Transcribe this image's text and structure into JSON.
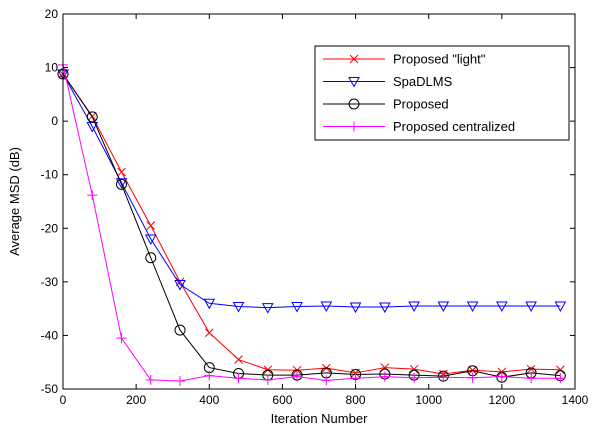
{
  "chart_data": {
    "type": "line",
    "title": "",
    "xlabel": "Iteration Number",
    "ylabel": "Average MSD (dB)",
    "xlim": [
      0,
      1400
    ],
    "ylim": [
      -50,
      20
    ],
    "xticks": [
      0,
      200,
      400,
      600,
      800,
      1000,
      1200,
      1400
    ],
    "yticks": [
      -50,
      -40,
      -30,
      -20,
      -10,
      0,
      10,
      20
    ],
    "legend_position": "top-right",
    "grid": false,
    "series": [
      {
        "name": "Proposed \"light\"",
        "color": "#ff0000",
        "marker": "x",
        "x": [
          0,
          80,
          160,
          240,
          320,
          400,
          480,
          560,
          640,
          720,
          800,
          880,
          960,
          1040,
          1120,
          1200,
          1280,
          1360
        ],
        "y": [
          8.8,
          0.9,
          -9.5,
          -19.5,
          -30,
          -39.5,
          -44.5,
          -46.4,
          -46.5,
          -46.1,
          -47,
          -46,
          -46.3,
          -47.2,
          -46.5,
          -46.8,
          -46.3,
          -46.4
        ]
      },
      {
        "name": "SpaDLMS",
        "color": "#0000ff",
        "marker": "triangle-down",
        "x": [
          0,
          80,
          160,
          240,
          320,
          400,
          480,
          560,
          640,
          720,
          800,
          880,
          960,
          1040,
          1120,
          1200,
          1280,
          1360
        ],
        "y": [
          8.8,
          -1,
          -11.5,
          -22,
          -30.5,
          -34,
          -34.6,
          -34.8,
          -34.6,
          -34.5,
          -34.7,
          -34.7,
          -34.5,
          -34.5,
          -34.5,
          -34.5,
          -34.5,
          -34.5
        ]
      },
      {
        "name": "Proposed",
        "color": "#000000",
        "marker": "circle",
        "x": [
          0,
          80,
          160,
          240,
          320,
          400,
          480,
          560,
          640,
          720,
          800,
          880,
          960,
          1040,
          1120,
          1200,
          1280,
          1360
        ],
        "y": [
          8.8,
          0.8,
          -11.8,
          -25.5,
          -39,
          -46,
          -47.1,
          -47.4,
          -47.4,
          -47,
          -47.3,
          -47.2,
          -47.4,
          -47.6,
          -46.6,
          -47.8,
          -47,
          -47.5
        ]
      },
      {
        "name": "Proposed centralized",
        "color": "#ff00ff",
        "marker": "plus",
        "x": [
          0,
          80,
          160,
          240,
          320,
          400,
          480,
          560,
          640,
          720,
          800,
          880,
          960,
          1040,
          1120,
          1200,
          1280,
          1360
        ],
        "y": [
          10.5,
          -13.8,
          -40.5,
          -48.3,
          -48.5,
          -47.5,
          -48,
          -48.3,
          -47.7,
          -48.4,
          -48,
          -47.7,
          -47.9,
          -47.8,
          -47.9,
          -47.7,
          -48,
          -48
        ]
      }
    ]
  }
}
